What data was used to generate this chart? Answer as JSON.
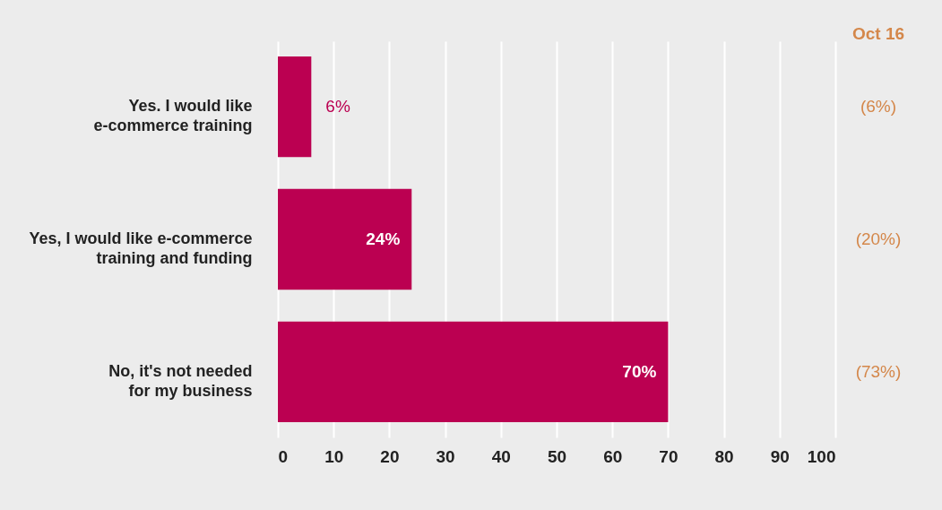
{
  "chart_data": {
    "type": "bar",
    "orientation": "horizontal",
    "categories": [
      "Yes. I would like\ne-commerce training",
      "Yes, I would like e-commerce\ntraining and funding",
      "No, it's not needed\nfor my business"
    ],
    "values": [
      6,
      24,
      70
    ],
    "color": "#bb0051",
    "value_labels": [
      "6%",
      "24%",
      "70%"
    ],
    "xlim": [
      0,
      100
    ],
    "xticks": [
      0,
      10,
      20,
      30,
      40,
      50,
      60,
      70,
      80,
      90,
      100
    ],
    "grid": "x",
    "annotations": [
      "Oct 16",
      "(6%)",
      "(20%)",
      "(73%)"
    ]
  }
}
